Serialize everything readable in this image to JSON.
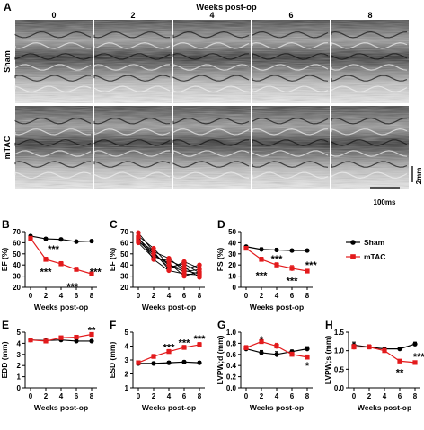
{
  "figure": {
    "panel_a": {
      "letter": "A",
      "header": "Weeks post-op",
      "columns": [
        "0",
        "2",
        "4",
        "6",
        "8"
      ],
      "rows": [
        "Sham",
        "mTAC"
      ],
      "scale_y": "2mm",
      "scale_x": "100ms"
    },
    "legend": {
      "items": [
        {
          "label": "Sham",
          "color": "#000000"
        },
        {
          "label": "mTAC",
          "color": "#e31a1c"
        }
      ]
    }
  },
  "chart_data": [
    {
      "id": "B",
      "letter": "B",
      "type": "line",
      "xlabel": "Weeks post-op",
      "ylabel": "EF (%)",
      "xlim": [
        0,
        8
      ],
      "ylim": [
        20,
        70
      ],
      "xticks": [
        0,
        2,
        4,
        6,
        8
      ],
      "yticks": [
        20,
        30,
        40,
        50,
        60,
        70
      ],
      "x": [
        0,
        2,
        4,
        6,
        8
      ],
      "series": [
        {
          "name": "Sham",
          "color": "#000000",
          "values": [
            66,
            63.5,
            63,
            61,
            61.5
          ],
          "err": [
            1,
            1,
            1,
            1,
            1
          ]
        },
        {
          "name": "mTAC",
          "color": "#e31a1c",
          "values": [
            64,
            45,
            41,
            36,
            32
          ],
          "err": [
            1.5,
            2,
            2,
            2,
            1.5
          ]
        }
      ],
      "annotations": [
        {
          "x": 3,
          "y": 54.5,
          "text": "***"
        },
        {
          "x": 2,
          "y": 34,
          "text": "***"
        },
        {
          "x": 5.5,
          "y": 21,
          "text": "***"
        },
        {
          "x": 8.5,
          "y": 34,
          "text": "***"
        }
      ]
    },
    {
      "id": "C",
      "letter": "C",
      "type": "line",
      "xlabel": "Weeks post-op",
      "ylabel": "EF (%)",
      "xlim": [
        0,
        8
      ],
      "ylim": [
        20,
        70
      ],
      "xticks": [
        0,
        2,
        4,
        6,
        8
      ],
      "yticks": [
        20,
        30,
        40,
        50,
        60,
        70
      ],
      "x": [
        0,
        2,
        4,
        6,
        8
      ],
      "series": [
        {
          "color": "#000000",
          "values": [
            69,
            52,
            46,
            35,
            32
          ]
        },
        {
          "color": "#000000",
          "values": [
            66,
            55,
            40,
            34,
            36
          ]
        },
        {
          "color": "#000000",
          "values": [
            64,
            50,
            38,
            41,
            33
          ]
        },
        {
          "color": "#000000",
          "values": [
            62,
            48,
            42,
            30,
            34
          ]
        },
        {
          "color": "#000000",
          "values": [
            60,
            46,
            44,
            38,
            29
          ]
        },
        {
          "color": "#000000",
          "values": [
            63,
            52,
            36,
            43,
            37
          ]
        },
        {
          "color": "#000000",
          "values": [
            65,
            45,
            35,
            32,
            31
          ]
        },
        {
          "color": "#000000",
          "values": [
            61,
            50,
            40,
            36,
            40
          ]
        }
      ]
    },
    {
      "id": "D",
      "letter": "D",
      "type": "line",
      "xlabel": "Weeks post-op",
      "ylabel": "FS (%)",
      "xlim": [
        0,
        8
      ],
      "ylim": [
        0,
        50
      ],
      "xticks": [
        0,
        2,
        4,
        6,
        8
      ],
      "yticks": [
        0,
        10,
        20,
        30,
        40,
        50
      ],
      "x": [
        0,
        2,
        4,
        6,
        8
      ],
      "series": [
        {
          "name": "Sham",
          "color": "#000000",
          "values": [
            36.5,
            34,
            33.5,
            33,
            33
          ],
          "err": [
            1,
            1.5,
            1.5,
            1,
            1
          ]
        },
        {
          "name": "mTAC",
          "color": "#e31a1c",
          "values": [
            35,
            25,
            20,
            17,
            14.5
          ],
          "err": [
            1.5,
            2,
            2,
            2.5,
            1.5
          ]
        }
      ],
      "annotations": [
        {
          "x": 4,
          "y": 26,
          "text": "***"
        },
        {
          "x": 2,
          "y": 11,
          "text": "***"
        },
        {
          "x": 8.5,
          "y": 20,
          "text": "***"
        },
        {
          "x": 6,
          "y": 6,
          "text": "***"
        }
      ]
    },
    {
      "id": "E",
      "letter": "E",
      "type": "line",
      "xlabel": "Weeks post-op",
      "ylabel": "EDD (mm)",
      "xlim": [
        0,
        8
      ],
      "ylim": [
        0,
        5
      ],
      "xticks": [
        0,
        2,
        4,
        6,
        8
      ],
      "yticks": [
        0,
        1,
        2,
        3,
        4,
        5
      ],
      "x": [
        0,
        2,
        4,
        6,
        8
      ],
      "series": [
        {
          "name": "Sham",
          "color": "#000000",
          "values": [
            4.3,
            4.25,
            4.3,
            4.2,
            4.2
          ],
          "err": [
            0.1,
            0.1,
            0.1,
            0.1,
            0.1
          ]
        },
        {
          "name": "mTAC",
          "color": "#e31a1c",
          "values": [
            4.3,
            4.2,
            4.5,
            4.55,
            4.8
          ],
          "err": [
            0.1,
            0.1,
            0.15,
            0.15,
            0.15
          ]
        }
      ],
      "annotations": [
        {
          "x": 8,
          "y": 5.2,
          "text": "**"
        }
      ]
    },
    {
      "id": "F",
      "letter": "F",
      "type": "line",
      "xlabel": "Weeks post-op",
      "ylabel": "ESD (mm)",
      "xlim": [
        0,
        8
      ],
      "ylim": [
        1,
        5
      ],
      "xticks": [
        0,
        2,
        4,
        6,
        8
      ],
      "yticks": [
        1,
        2,
        3,
        4,
        5
      ],
      "x": [
        0,
        2,
        4,
        6,
        8
      ],
      "series": [
        {
          "name": "Sham",
          "color": "#000000",
          "values": [
            2.75,
            2.75,
            2.8,
            2.85,
            2.8
          ],
          "err": [
            0.1,
            0.1,
            0.1,
            0.1,
            0.1
          ]
        },
        {
          "name": "mTAC",
          "color": "#e31a1c",
          "values": [
            2.8,
            3.25,
            3.6,
            3.9,
            4.1
          ],
          "err": [
            0.1,
            0.15,
            0.15,
            0.15,
            0.15
          ]
        }
      ],
      "annotations": [
        {
          "x": 4,
          "y": 3.95,
          "text": "***"
        },
        {
          "x": 6,
          "y": 4.25,
          "text": "***"
        },
        {
          "x": 8,
          "y": 4.55,
          "text": "***"
        }
      ]
    },
    {
      "id": "G",
      "letter": "G",
      "type": "line",
      "xlabel": "Weeks post-op",
      "ylabel": "LVPW;d (mm)",
      "xlim": [
        0,
        8
      ],
      "ylim": [
        0,
        1.0
      ],
      "xticks": [
        0,
        2,
        4,
        6,
        8
      ],
      "yticks": [
        0,
        0.2,
        0.4,
        0.6,
        0.8,
        1.0
      ],
      "yticklabels": [
        "0.0",
        "0.2",
        "0.4",
        "0.6",
        "0.8",
        "1.0"
      ],
      "x": [
        0,
        2,
        4,
        6,
        8
      ],
      "series": [
        {
          "name": "Sham",
          "color": "#000000",
          "values": [
            0.7,
            0.63,
            0.6,
            0.65,
            0.7
          ],
          "err": [
            0.04,
            0.04,
            0.05,
            0.03,
            0.04
          ]
        },
        {
          "name": "mTAC",
          "color": "#e31a1c",
          "values": [
            0.72,
            0.83,
            0.75,
            0.6,
            0.55
          ],
          "err": [
            0.04,
            0.04,
            0.05,
            0.04,
            0.04
          ]
        }
      ],
      "annotations": [
        {
          "x": 2,
          "y": 0.87,
          "text": "*"
        },
        {
          "x": 8,
          "y": 0.4,
          "text": "*"
        }
      ]
    },
    {
      "id": "H",
      "letter": "H",
      "type": "line",
      "xlabel": "Weeks post-op",
      "ylabel": "LVPW;s (mm)",
      "xlim": [
        0,
        8
      ],
      "ylim": [
        0,
        1.5
      ],
      "xticks": [
        0,
        2,
        4,
        6,
        8
      ],
      "yticks": [
        0,
        0.5,
        1.0,
        1.5
      ],
      "yticklabels": [
        "0.0",
        "0.5",
        "1.0",
        "1.5"
      ],
      "x": [
        0,
        2,
        4,
        6,
        8
      ],
      "series": [
        {
          "name": "Sham",
          "color": "#000000",
          "values": [
            1.15,
            1.1,
            1.05,
            1.05,
            1.18
          ],
          "err": [
            0.08,
            0.06,
            0.05,
            0.05,
            0.05
          ]
        },
        {
          "name": "mTAC",
          "color": "#e31a1c",
          "values": [
            1.1,
            1.1,
            1.0,
            0.72,
            0.68
          ],
          "err": [
            0.07,
            0.06,
            0.06,
            0.04,
            0.04
          ]
        }
      ],
      "annotations": [
        {
          "x": 6,
          "y": 0.42,
          "text": "**"
        },
        {
          "x": 8.5,
          "y": 0.85,
          "text": "***"
        }
      ]
    }
  ]
}
